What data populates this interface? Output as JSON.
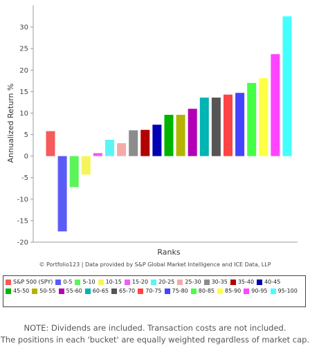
{
  "chart_data": {
    "type": "bar",
    "title": "",
    "xlabel": "Ranks",
    "ylabel": "Annualized Return %",
    "ylim": [
      -20,
      35
    ],
    "yticks": [
      -20,
      -15,
      -10,
      -5,
      0,
      5,
      10,
      15,
      20,
      25,
      30
    ],
    "grid": false,
    "legend_position": "bottom",
    "categories": [
      "S&P 500 (SPY)",
      "0-5",
      "5-10",
      "10-15",
      "15-20",
      "20-25",
      "25-30",
      "30-35",
      "35-40",
      "40-45",
      "45-50",
      "50-55",
      "55-60",
      "60-65",
      "65-70",
      "70-75",
      "75-80",
      "80-85",
      "85-90",
      "90-95",
      "95-100"
    ],
    "values": [
      5.8,
      -17.5,
      -7.2,
      -4.3,
      0.7,
      3.8,
      3.0,
      6.0,
      6.1,
      7.3,
      9.6,
      9.6,
      11.0,
      13.6,
      13.6,
      14.3,
      14.7,
      17.0,
      18.1,
      23.7,
      32.5
    ],
    "colors": [
      "#f55b5b",
      "#5b5bf5",
      "#5bf55b",
      "#f5f55b",
      "#f55bf5",
      "#5bf5f5",
      "#f5aaaa",
      "#8c8c8c",
      "#b40000",
      "#0000b4",
      "#00b400",
      "#b4b400",
      "#b400b4",
      "#00b4b4",
      "#555555",
      "#ff4444",
      "#4444ff",
      "#44ff44",
      "#ffff44",
      "#ff44ff",
      "#44ffff"
    ]
  },
  "credit": "© Portfolio123 | Data provided by S&P Global Market Intelligence and ICE Data, LLP",
  "note": {
    "line1": "NOTE: Dividends are included. Transaction costs are not included.",
    "line2": "The positions in each 'bucket' are equally weighted regardless of market cap."
  }
}
